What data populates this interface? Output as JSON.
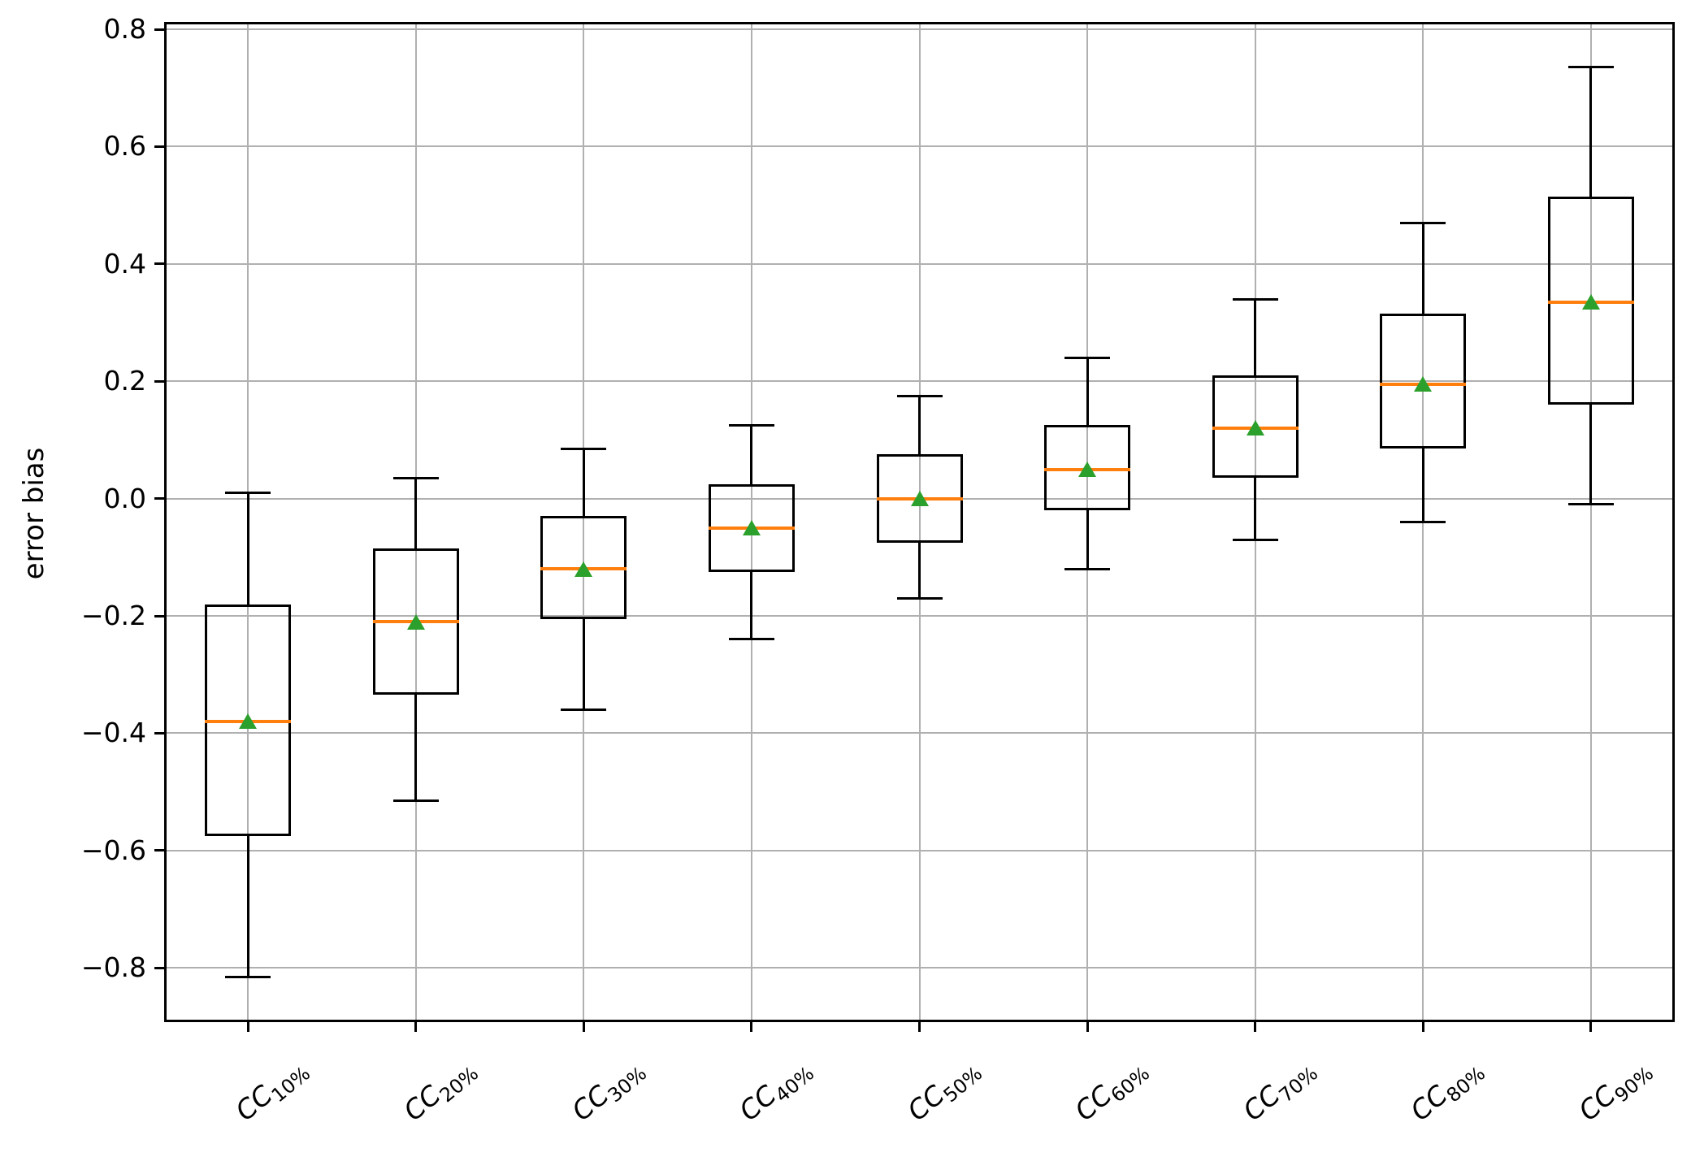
{
  "figure": {
    "background": "#ffffff"
  },
  "chart_data": {
    "type": "boxplot",
    "title": "",
    "xlabel": "",
    "ylabel": "error bias",
    "grid": true,
    "legend": "none",
    "ylim": [
      -0.8925,
      0.8125
    ],
    "ytick_values": [
      0.8,
      0.6,
      0.4,
      0.2,
      0.0,
      -0.2,
      -0.4,
      -0.6,
      -0.8
    ],
    "ytick_labels": [
      "0.8",
      "0.6",
      "0.4",
      "0.2",
      "0.0",
      "−0.2",
      "−0.4",
      "−0.6",
      "−0.8"
    ],
    "categories": [
      "CC10%",
      "CC20%",
      "CC30%",
      "CC40%",
      "CC50%",
      "CC60%",
      "CC70%",
      "CC80%",
      "CC90%"
    ],
    "x_tick_labels": [
      {
        "base": "CC",
        "sub": "10%"
      },
      {
        "base": "CC",
        "sub": "20%"
      },
      {
        "base": "CC",
        "sub": "30%"
      },
      {
        "base": "CC",
        "sub": "40%"
      },
      {
        "base": "CC",
        "sub": "50%"
      },
      {
        "base": "CC",
        "sub": "60%"
      },
      {
        "base": "CC",
        "sub": "70%"
      },
      {
        "base": "CC",
        "sub": "80%"
      },
      {
        "base": "CC",
        "sub": "90%"
      }
    ],
    "boxes": [
      {
        "label": "CC10%",
        "whisker_low": -0.815,
        "q1": -0.575,
        "median": -0.38,
        "mean": -0.38,
        "q3": -0.18,
        "whisker_high": 0.01
      },
      {
        "label": "CC20%",
        "whisker_low": -0.515,
        "q1": -0.335,
        "median": -0.21,
        "mean": -0.21,
        "q3": -0.085,
        "whisker_high": 0.035
      },
      {
        "label": "CC30%",
        "whisker_low": -0.36,
        "q1": -0.205,
        "median": -0.12,
        "mean": -0.12,
        "q3": -0.03,
        "whisker_high": 0.085
      },
      {
        "label": "CC40%",
        "whisker_low": -0.24,
        "q1": -0.125,
        "median": -0.05,
        "mean": -0.05,
        "q3": 0.025,
        "whisker_high": 0.125
      },
      {
        "label": "CC50%",
        "whisker_low": -0.17,
        "q1": -0.075,
        "median": 0.0,
        "mean": 0.0,
        "q3": 0.075,
        "whisker_high": 0.175
      },
      {
        "label": "CC60%",
        "whisker_low": -0.12,
        "q1": -0.02,
        "median": 0.05,
        "mean": 0.05,
        "q3": 0.125,
        "whisker_high": 0.24
      },
      {
        "label": "CC70%",
        "whisker_low": -0.07,
        "q1": 0.035,
        "median": 0.12,
        "mean": 0.12,
        "q3": 0.21,
        "whisker_high": 0.34
      },
      {
        "label": "CC80%",
        "whisker_low": -0.04,
        "q1": 0.085,
        "median": 0.195,
        "mean": 0.195,
        "q3": 0.315,
        "whisker_high": 0.47
      },
      {
        "label": "CC90%",
        "whisker_low": -0.01,
        "q1": 0.16,
        "median": 0.335,
        "mean": 0.335,
        "q3": 0.515,
        "whisker_high": 0.735
      }
    ],
    "mean_marker_shape": "triangle-up",
    "colors": {
      "box_line": "#000000",
      "median": "#ff7f0e",
      "mean_marker": "#2ca02c",
      "grid": "#b0b0b0",
      "background": "#ffffff"
    }
  }
}
